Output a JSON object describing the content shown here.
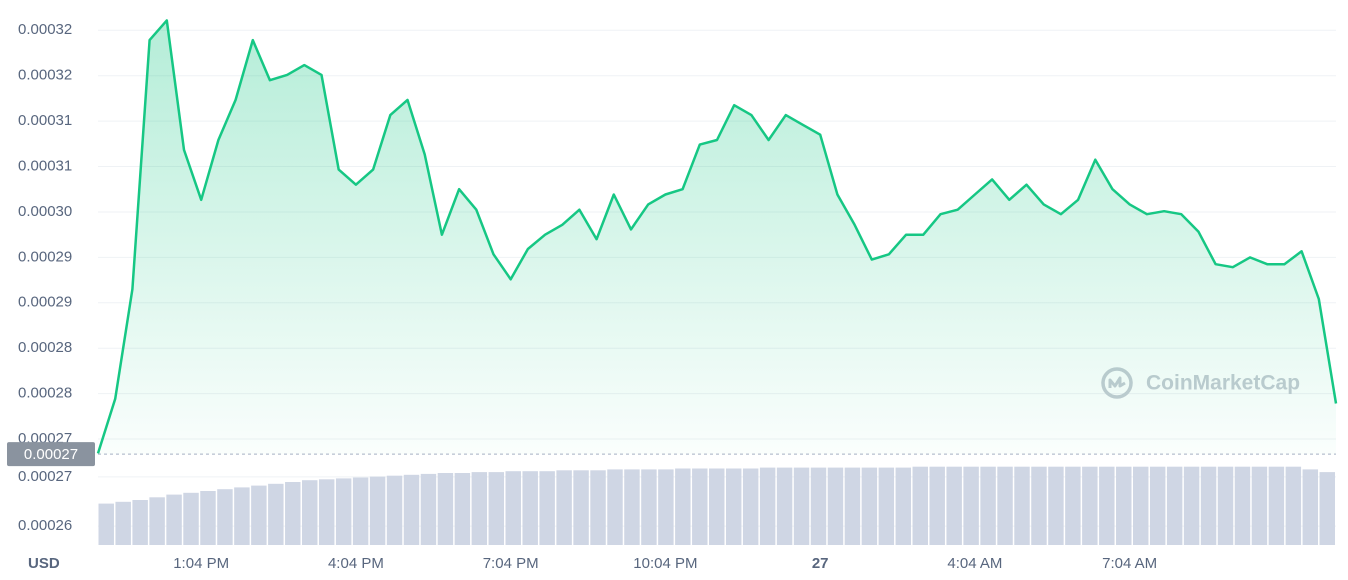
{
  "chart_data": {
    "type": "line",
    "y_unit_label": "USD",
    "watermark": "CoinMarketCap",
    "color": "#16c784",
    "grid": true,
    "xlim": [
      0,
      72
    ],
    "xticks": [
      {
        "value": 6,
        "label": "1:04 PM"
      },
      {
        "value": 15,
        "label": "4:04 PM"
      },
      {
        "value": 24,
        "label": "7:04 PM"
      },
      {
        "value": 33,
        "label": "10:04 PM"
      },
      {
        "value": 42,
        "label": "27"
      },
      {
        "value": 51,
        "label": "4:04 AM"
      },
      {
        "value": 60,
        "label": "7:04 AM"
      }
    ],
    "ylim": [
      0.000256,
      0.000328
    ],
    "yticks": [
      {
        "value": 0.000324,
        "label": "0.00032"
      },
      {
        "value": 0.000318,
        "label": "0.00032"
      },
      {
        "value": 0.000312,
        "label": "0.00031"
      },
      {
        "value": 0.000306,
        "label": "0.00031"
      },
      {
        "value": 0.0003,
        "label": "0.00030"
      },
      {
        "value": 0.000294,
        "label": "0.00029"
      },
      {
        "value": 0.000288,
        "label": "0.00029"
      },
      {
        "value": 0.000282,
        "label": "0.00028"
      },
      {
        "value": 0.000276,
        "label": "0.00028"
      },
      {
        "value": 0.00027,
        "label": "0.00027"
      },
      {
        "value": 0.000265,
        "label": "0.00027"
      },
      {
        "value": 0.0002585,
        "label": "0.00026"
      }
    ],
    "reference_line": {
      "value": 0.000268,
      "label": "0.00027"
    },
    "values": [
      0.0002681,
      0.0002753,
      0.0002898,
      0.0003227,
      0.0003253,
      0.0003082,
      0.0003016,
      0.0003095,
      0.0003148,
      0.0003227,
      0.0003174,
      0.0003181,
      0.0003194,
      0.0003181,
      0.0003056,
      0.0003036,
      0.0003056,
      0.0003128,
      0.0003148,
      0.0003076,
      0.000297,
      0.000303,
      0.0003003,
      0.0002944,
      0.0002911,
      0.0002951,
      0.000297,
      0.0002983,
      0.0003003,
      0.0002964,
      0.0003023,
      0.0002977,
      0.000301,
      0.0003023,
      0.000303,
      0.0003089,
      0.0003095,
      0.0003141,
      0.0003128,
      0.0003095,
      0.0003128,
      0.0003115,
      0.0003102,
      0.0003023,
      0.0002983,
      0.0002937,
      0.0002944,
      0.000297,
      0.000297,
      0.0002997,
      0.0003003,
      0.0003023,
      0.0003043,
      0.0003016,
      0.0003036,
      0.000301,
      0.0002997,
      0.0003016,
      0.0003069,
      0.000303,
      0.000301,
      0.0002997,
      0.0003001,
      0.0002997,
      0.0002974,
      0.0002931,
      0.0002927,
      0.000294,
      0.0002931,
      0.0002931,
      0.0002948,
      0.0002885,
      0.0002747
    ],
    "volume": {
      "color": "#cfd6e4",
      "ylim": [
        0,
        100
      ],
      "values": [
        46,
        48,
        50,
        53,
        56,
        58,
        60,
        62,
        64,
        66,
        68,
        70,
        72,
        73,
        74,
        75,
        76,
        77,
        78,
        79,
        80,
        80,
        81,
        81,
        82,
        82,
        82,
        83,
        83,
        83,
        84,
        84,
        84,
        84,
        85,
        85,
        85,
        85,
        85,
        86,
        86,
        86,
        86,
        86,
        86,
        86,
        86,
        86,
        87,
        87,
        87,
        87,
        87,
        87,
        87,
        87,
        87,
        87,
        87,
        87,
        87,
        87,
        87,
        87,
        87,
        87,
        87,
        87,
        87,
        87,
        87,
        84,
        81
      ]
    }
  }
}
